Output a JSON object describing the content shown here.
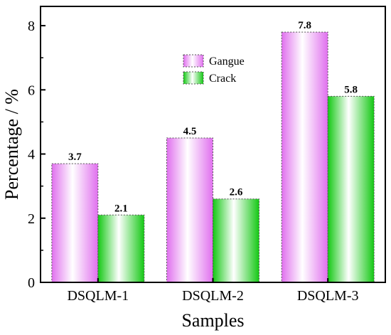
{
  "chart_data": {
    "type": "bar",
    "categories": [
      "DSQLM-1",
      "DSQLM-2",
      "DSQLM-3"
    ],
    "series": [
      {
        "name": "Gangue",
        "values": [
          3.7,
          4.5,
          7.8
        ],
        "color": "#e070ee",
        "labels": [
          "3.7",
          "4.5",
          "7.8"
        ]
      },
      {
        "name": "Crack",
        "values": [
          2.1,
          2.6,
          5.8
        ],
        "color": "#14c814",
        "labels": [
          "2.1",
          "2.6",
          "5.8"
        ]
      }
    ],
    "xlabel": "Samples",
    "ylabel": "Percentage / %",
    "ylim": [
      0,
      8.6
    ],
    "yticks": [
      0,
      2,
      4,
      6,
      8
    ],
    "ytick_labels": [
      "0",
      "2",
      "4",
      "6",
      "8"
    ],
    "legend_position": "top-center",
    "grid": false
  }
}
